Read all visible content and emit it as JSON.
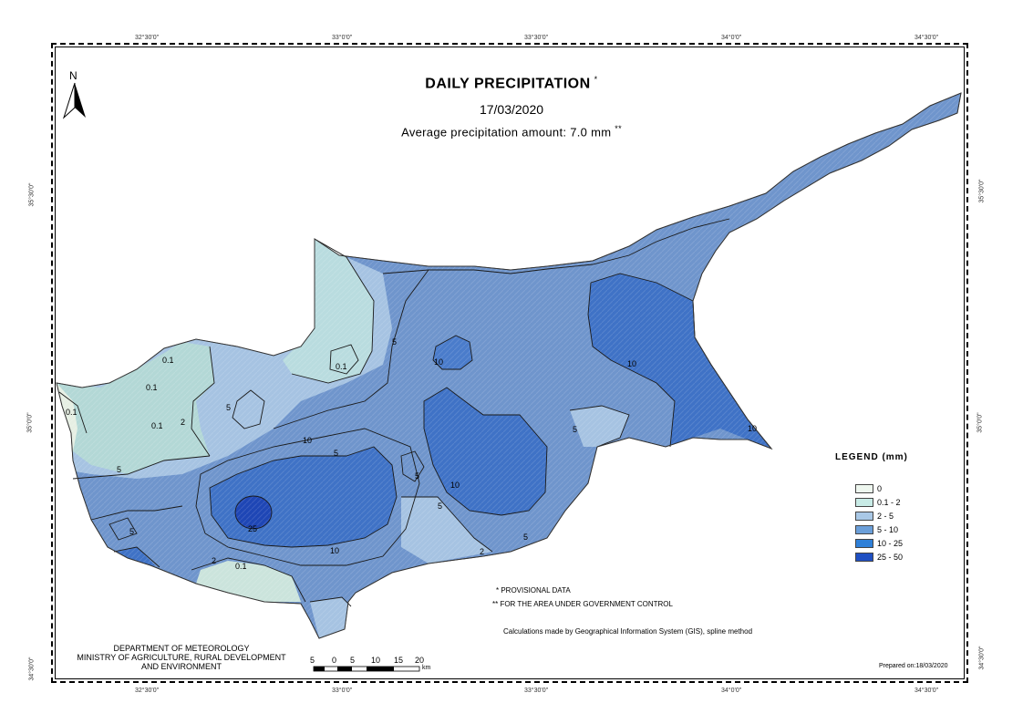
{
  "map": {
    "title": "DAILY PRECIPITATION",
    "title_mark": "*",
    "date": "17/03/2020",
    "average_label": "Average precipitation amount: 7.0 mm",
    "average_mark": "**",
    "north_label": "N",
    "coords": {
      "top": [
        "32°30'0\"",
        "33°0'0\"",
        "33°30'0\"",
        "34°0'0\"",
        "34°30'0\""
      ],
      "bottom": [
        "32°30'0\"",
        "33°0'0\"",
        "33°30'0\"",
        "34°0'0\"",
        "34°30'0\""
      ],
      "left": [
        "35°30'0\"",
        "35°0'0\"",
        "34°30'0\""
      ],
      "right": [
        "35°30'0\"",
        "35°0'0\"",
        "34°30'0\""
      ]
    },
    "contour_labels": [
      "0.1",
      "0.1",
      "0.1",
      "2",
      "5",
      "5",
      "5",
      "5",
      "5",
      "5",
      "5",
      "10",
      "10",
      "10",
      "10",
      "10",
      "10",
      "25",
      "2",
      "2",
      "0.1",
      "5",
      "0.1",
      "0.1",
      "5"
    ],
    "legend": {
      "title": "LEGEND (mm)",
      "items": [
        {
          "label": "0",
          "color": "#eef7ef"
        },
        {
          "label": "0.1 - 2",
          "color": "#c8ebe6"
        },
        {
          "label": "2 - 5",
          "color": "#a9c8e6"
        },
        {
          "label": "5 - 10",
          "color": "#6b9fd9"
        },
        {
          "label": "10 - 25",
          "color": "#2f80d8"
        },
        {
          "label": "25 - 50",
          "color": "#1f4fc2"
        }
      ]
    },
    "notes": {
      "provisional": "* PROVISIONAL DATA",
      "government": "** FOR THE AREA UNDER GOVERNMENT CONTROL",
      "calculations": "Calculations made by Geographical Information System (GIS), spline method"
    },
    "department": {
      "line1": "DEPARTMENT OF METEOROLOGY",
      "line2": "MINISTRY OF AGRICULTURE, RURAL DEVELOPMENT",
      "line3": "AND ENVIRONMENT"
    },
    "scale": {
      "ticks": [
        "5",
        "0",
        "5",
        "10",
        "15",
        "20"
      ],
      "unit": "km"
    },
    "prepared": "Prepared on:18/03/2020"
  }
}
